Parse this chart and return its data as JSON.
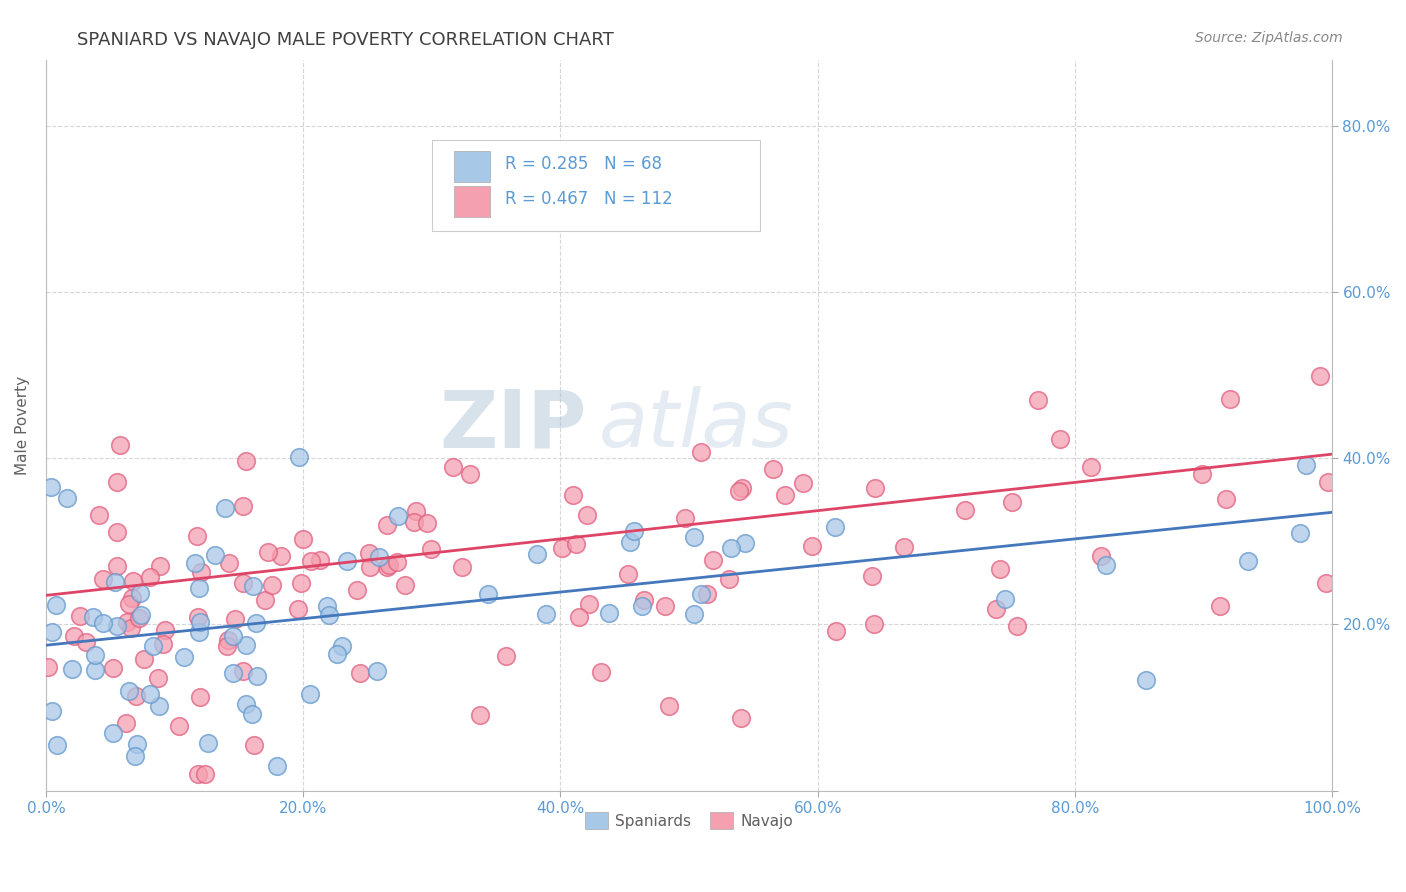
{
  "title": "SPANIARD VS NAVAJO MALE POVERTY CORRELATION CHART",
  "source": "Source: ZipAtlas.com",
  "ylabel": "Male Poverty",
  "xlim": [
    0,
    1
  ],
  "ylim": [
    0,
    0.88
  ],
  "xticks": [
    0.0,
    0.2,
    0.4,
    0.6,
    0.8,
    1.0
  ],
  "yticks": [
    0.0,
    0.2,
    0.4,
    0.6,
    0.8
  ],
  "xtick_labels": [
    "0.0%",
    "20.0%",
    "40.0%",
    "60.0%",
    "80.0%",
    "100.0%"
  ],
  "ytick_labels_right": [
    "",
    "20.0%",
    "40.0%",
    "60.0%",
    "80.0%"
  ],
  "spaniards_color": "#A8C8E8",
  "navajo_color": "#F4A0B0",
  "spaniards_edge_color": "#6699CC",
  "navajo_edge_color": "#E06080",
  "spaniards_line_color": "#4477BB",
  "navajo_line_color": "#DD4466",
  "R_spaniards": 0.285,
  "N_spaniards": 68,
  "R_navajo": 0.467,
  "N_navajo": 112,
  "background_color": "#FFFFFF",
  "grid_color": "#CCCCCC",
  "title_color": "#404040",
  "axis_label_color": "#606060",
  "tick_color": "#5B9BD5",
  "legend_text_color": "#5B9BD5",
  "watermark_zip": "ZIP",
  "watermark_atlas": "atlas",
  "sp_line_x0": 0.0,
  "sp_line_y0": 0.175,
  "sp_line_x1": 1.0,
  "sp_line_y1": 0.335,
  "nav_line_x0": 0.0,
  "nav_line_y0": 0.235,
  "nav_line_x1": 1.0,
  "nav_line_y1": 0.405
}
